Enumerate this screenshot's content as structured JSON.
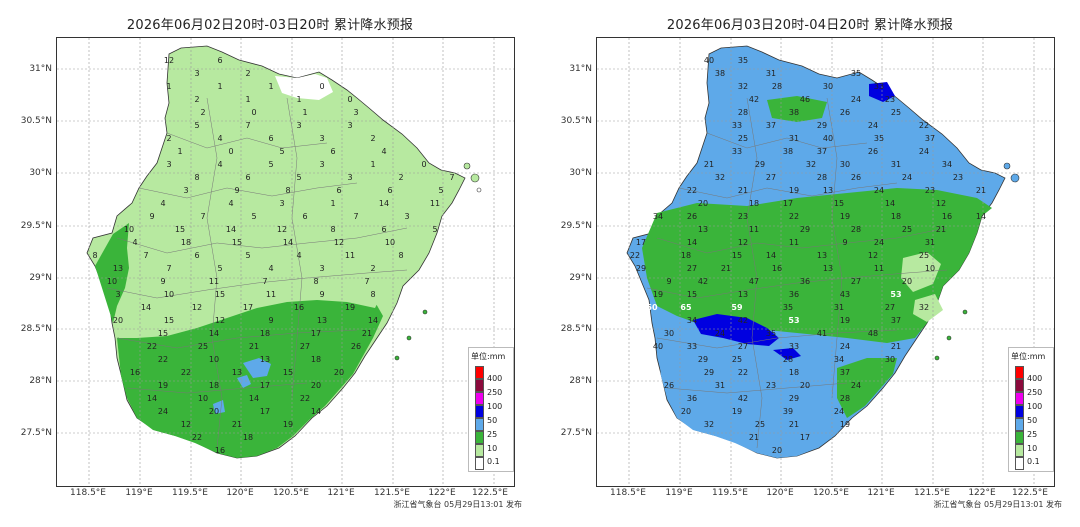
{
  "left_map": {
    "title": "2026年06月02日20时-03日20时 累计降水预报",
    "y_ticks": [
      "31°N",
      "30.5°N",
      "30°N",
      "29.5°N",
      "29°N",
      "28.5°N",
      "28°N",
      "27.5°N"
    ],
    "x_ticks": [
      "118.5°E",
      "119°E",
      "119.5°E",
      "120°E",
      "120.5°E",
      "121°E",
      "121.5°E",
      "122°E",
      "122.5°E"
    ],
    "legend_title": "单位:mm",
    "legend_values": [
      "400",
      "250",
      "100",
      "50",
      "25",
      "10",
      "0.1"
    ],
    "issuer": "浙江省气象台 05月29日13:01 发布",
    "station_values": [
      "12",
      "6",
      "3",
      "2",
      "1",
      "1",
      "1",
      "0",
      "2",
      "1",
      "1",
      "0",
      "2",
      "0",
      "1",
      "3",
      "5",
      "7",
      "3",
      "3",
      "2",
      "4",
      "6",
      "3",
      "2",
      "1",
      "0",
      "5",
      "6",
      "4",
      "3",
      "4",
      "5",
      "3",
      "1",
      "0",
      "8",
      "6",
      "5",
      "3",
      "2",
      "7",
      "3",
      "9",
      "8",
      "6",
      "6",
      "5",
      "4",
      "4",
      "3",
      "1",
      "14",
      "11",
      "9",
      "7",
      "5",
      "6",
      "7",
      "3",
      "10",
      "15",
      "14",
      "12",
      "8",
      "6",
      "5",
      "4",
      "18",
      "15",
      "14",
      "12",
      "10",
      "8",
      "7",
      "6",
      "5",
      "4",
      "11",
      "8",
      "13",
      "7",
      "5",
      "4",
      "3",
      "2",
      "10",
      "9",
      "11",
      "7",
      "8",
      "7",
      "3",
      "10",
      "15",
      "11",
      "9",
      "8",
      "14",
      "12",
      "17",
      "16",
      "19",
      "20",
      "15",
      "12",
      "9",
      "13",
      "14",
      "15",
      "14",
      "18",
      "17",
      "21",
      "22",
      "25",
      "21",
      "27",
      "26",
      "22",
      "10",
      "13",
      "18",
      "16",
      "22",
      "13",
      "15",
      "20",
      "19",
      "18",
      "17",
      "20",
      "14",
      "10",
      "14",
      "22",
      "24",
      "20",
      "17",
      "14",
      "12",
      "21",
      "19",
      "22",
      "18",
      "16"
    ]
  },
  "right_map": {
    "title": "2026年06月03日20时-04日20时 累计降水预报",
    "y_ticks": [
      "31°N",
      "30.5°N",
      "30°N",
      "29.5°N",
      "29°N",
      "28.5°N",
      "28°N",
      "27.5°N"
    ],
    "x_ticks": [
      "118.5°E",
      "119°E",
      "119.5°E",
      "120°E",
      "120.5°E",
      "121°E",
      "121.5°E",
      "122°E",
      "122.5°E"
    ],
    "legend_title": "单位:mm",
    "legend_values": [
      "400",
      "250",
      "100",
      "50",
      "25",
      "10",
      "0.1"
    ],
    "issuer": "浙江省气象台 05月29日13:01 发布",
    "station_values": [
      "40",
      "35",
      "38",
      "31",
      "35",
      "32",
      "28",
      "30",
      "33",
      "42",
      "46",
      "24",
      "23",
      "28",
      "38",
      "26",
      "25",
      "33",
      "37",
      "29",
      "24",
      "22",
      "25",
      "31",
      "40",
      "35",
      "37",
      "33",
      "38",
      "37",
      "26",
      "24",
      "21",
      "29",
      "32",
      "30",
      "31",
      "34",
      "32",
      "27",
      "28",
      "26",
      "24",
      "23",
      "22",
      "21",
      "19",
      "13",
      "24",
      "23",
      "21",
      "20",
      "18",
      "17",
      "15",
      "14",
      "12",
      "34",
      "26",
      "23",
      "22",
      "19",
      "18",
      "16",
      "14",
      "13",
      "11",
      "29",
      "28",
      "25",
      "21",
      "17",
      "14",
      "12",
      "11",
      "9",
      "24",
      "31",
      "22",
      "18",
      "15",
      "14",
      "13",
      "12",
      "25",
      "29",
      "27",
      "21",
      "16",
      "13",
      "11",
      "10",
      "9",
      "42",
      "47",
      "36",
      "27",
      "20",
      "19",
      "15",
      "13",
      "36",
      "43",
      "53",
      "60",
      "65",
      "59",
      "35",
      "31",
      "27",
      "32",
      "34",
      "42",
      "53",
      "19",
      "37",
      "30",
      "24",
      "35",
      "41",
      "48",
      "40",
      "33",
      "27",
      "33",
      "24",
      "21",
      "29",
      "25",
      "28",
      "34",
      "30",
      "29",
      "22",
      "18",
      "37",
      "26",
      "31",
      "23",
      "20",
      "24",
      "36",
      "42",
      "29",
      "28",
      "20",
      "19",
      "39",
      "24",
      "32",
      "25",
      "21",
      "19",
      "21",
      "17",
      "20"
    ]
  }
}
